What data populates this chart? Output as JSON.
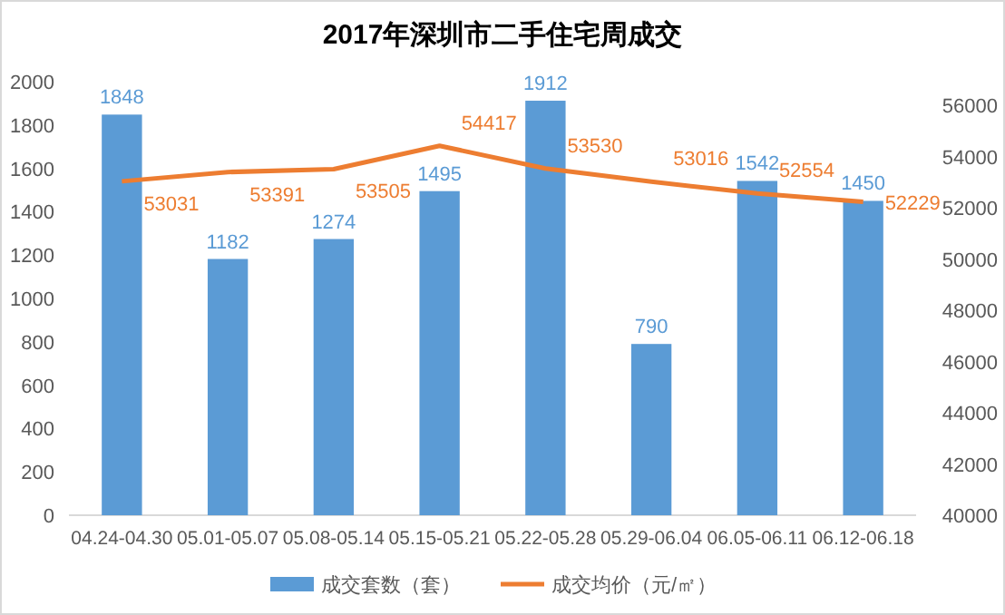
{
  "chart_data": {
    "type": "bar",
    "title": "2017年深圳市二手住宅周成交",
    "categories": [
      "04.24-04.30",
      "05.01-05.07",
      "05.08-05.14",
      "05.15-05.21",
      "05.22-05.28",
      "05.29-06.04",
      "06.05-06.11",
      "06.12-06.18"
    ],
    "series": [
      {
        "name": "成交套数（套）",
        "color": "#5b9bd5",
        "values": [
          1848,
          1182,
          1274,
          1495,
          1912,
          790,
          1542,
          1450
        ]
      },
      {
        "name": "成交均价（元/㎡）",
        "type": "line",
        "axis": "y2",
        "color": "#ed7d31",
        "values": [
          53031,
          53391,
          53505,
          54417,
          53530,
          53016,
          52554,
          52229
        ]
      }
    ],
    "ylim": [
      0,
      2000
    ],
    "yticks": [
      0,
      200,
      400,
      600,
      800,
      1000,
      1200,
      1400,
      1600,
      1800,
      2000
    ],
    "y2lim": [
      40000,
      56000
    ],
    "y2ticks": [
      40000,
      42000,
      44000,
      46000,
      48000,
      50000,
      52000,
      54000,
      56000
    ],
    "data_labels": true,
    "legend": "bottom",
    "grid": false,
    "marker": "none"
  }
}
